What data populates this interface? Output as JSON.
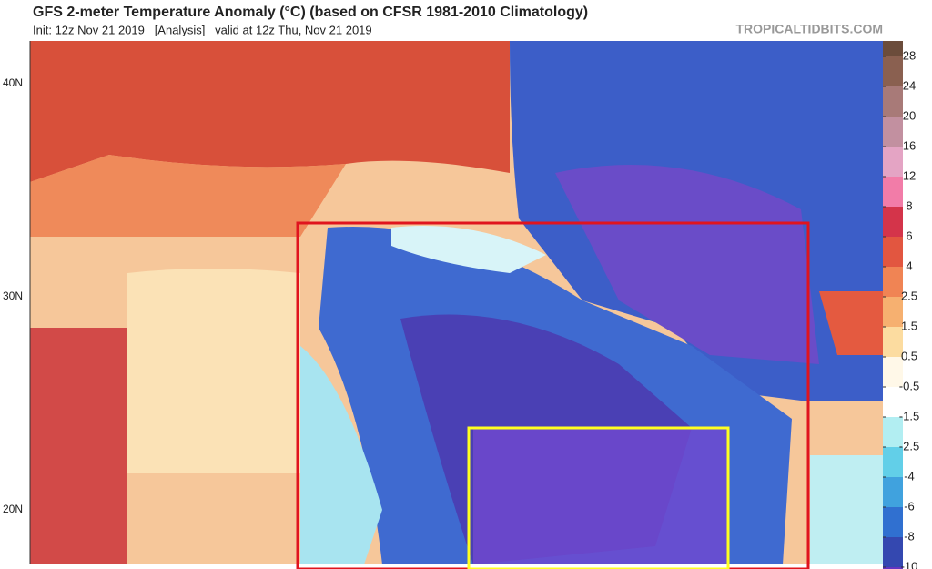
{
  "header": {
    "title": "GFS 2-meter Temperature Anomaly (°C) (based on CFSR 1981-2010 Climatology)",
    "subtitle": "Init: 12z Nov 21 2019   [Analysis]   valid at 12z Thu, Nov 21 2019",
    "source": "TROPICALTIDBITS.COM"
  },
  "map": {
    "latitude_labels": [
      "40N",
      "30N",
      "20N"
    ]
  },
  "colorbar": {
    "items": [
      {
        "label": "28",
        "color": "#8a6050"
      },
      {
        "label": "24",
        "color": "#a87a78"
      },
      {
        "label": "20",
        "color": "#c290a0"
      },
      {
        "label": "16",
        "color": "#e4a4c4"
      },
      {
        "label": "12",
        "color": "#f27ca8"
      },
      {
        "label": "8",
        "color": "#d4344a"
      },
      {
        "label": "6",
        "color": "#e25640"
      },
      {
        "label": "4",
        "color": "#f08454"
      },
      {
        "label": "2.5",
        "color": "#f6b070"
      },
      {
        "label": "1.5",
        "color": "#fcdca0"
      },
      {
        "label": "0.5",
        "color": "#fff8e8"
      },
      {
        "label": "-0.5",
        "color": "#ffffff"
      },
      {
        "label": "-1.5",
        "color": "#b2eef2"
      },
      {
        "label": "-2.5",
        "color": "#62cfe8"
      },
      {
        "label": "-4",
        "color": "#40a2de"
      },
      {
        "label": "-6",
        "color": "#3070d0"
      },
      {
        "label": "-8",
        "color": "#3448b0"
      },
      {
        "label": "-10",
        "color": "#6434c0"
      }
    ]
  }
}
